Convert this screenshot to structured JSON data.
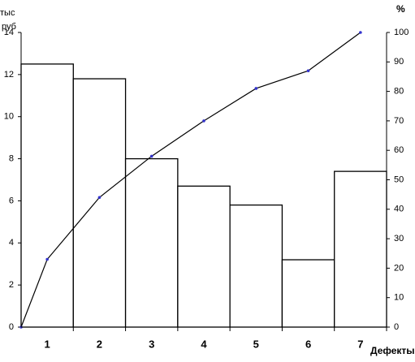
{
  "chart_data": {
    "type": "pareto",
    "ylabel": [
      "тыс",
      "руб"
    ],
    "y2label": "%",
    "xlabel": "Дефекты",
    "categories": [
      1,
      2,
      3,
      4,
      5,
      6,
      7
    ],
    "series": [
      {
        "type": "bar",
        "color": "#ffffff",
        "values": [
          12.5,
          11.8,
          8.0,
          6.7,
          5.8,
          3.2,
          7.4
        ]
      },
      {
        "type": "line",
        "axis": "y2",
        "color": "#000000",
        "marker_color": "#3333cc",
        "x": [
          0.5,
          1,
          2,
          3,
          4,
          5,
          6,
          7
        ],
        "values": [
          0,
          23,
          44,
          58,
          70,
          81,
          87,
          100
        ]
      }
    ],
    "xlim": [
      0.5,
      7.5
    ],
    "ylim": [
      0,
      14
    ],
    "yticks": [
      0,
      2,
      4,
      6,
      8,
      10,
      12,
      14
    ],
    "y2lim": [
      0,
      100
    ],
    "y2ticks": [
      0,
      10,
      20,
      30,
      40,
      50,
      60,
      70,
      80,
      90,
      100
    ]
  }
}
